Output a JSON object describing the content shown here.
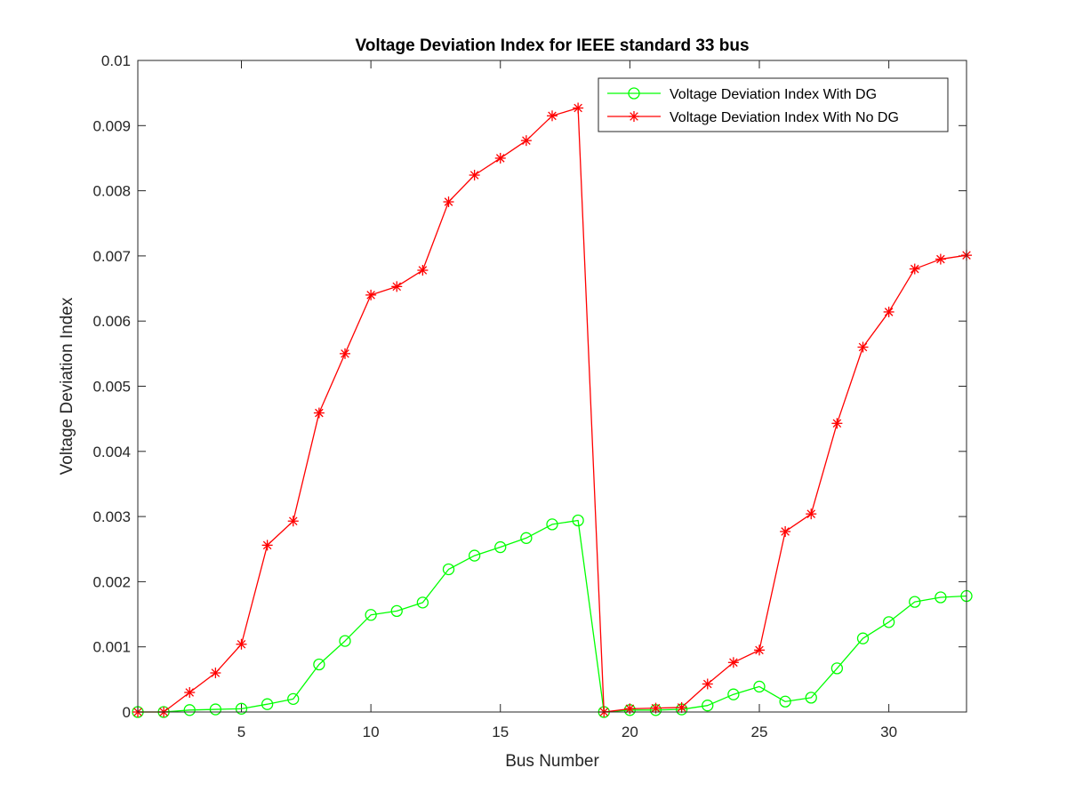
{
  "chart_data": {
    "type": "line",
    "title": "Voltage Deviation Index for IEEE standard 33 bus",
    "xlabel": "Bus Number",
    "ylabel": "Voltage Deviation Index",
    "xlim": [
      1,
      33
    ],
    "ylim": [
      0,
      0.01
    ],
    "x_ticks": [
      5,
      10,
      15,
      20,
      25,
      30
    ],
    "y_ticks": [
      0,
      0.001,
      0.002,
      0.003,
      0.004,
      0.005,
      0.006,
      0.007,
      0.008,
      0.009,
      0.01
    ],
    "y_tick_labels": [
      "0",
      "0.001",
      "0.002",
      "0.003",
      "0.004",
      "0.005",
      "0.006",
      "0.007",
      "0.008",
      "0.009",
      "0.01"
    ],
    "grid": false,
    "legend_position": "top-right",
    "x": [
      1,
      2,
      3,
      4,
      5,
      6,
      7,
      8,
      9,
      10,
      11,
      12,
      13,
      14,
      15,
      16,
      17,
      18,
      19,
      20,
      21,
      22,
      23,
      24,
      25,
      26,
      27,
      28,
      29,
      30,
      31,
      32,
      33
    ],
    "series": [
      {
        "name": "Voltage Deviation Index With DG",
        "color": "#00ff00",
        "marker": "circle",
        "values": [
          0,
          0,
          3e-05,
          4e-05,
          5e-05,
          0.00012,
          0.0002,
          0.00073,
          0.00109,
          0.00149,
          0.00155,
          0.00168,
          0.00219,
          0.0024,
          0.00253,
          0.00267,
          0.00288,
          0.00294,
          0,
          3e-05,
          3e-05,
          4e-05,
          0.0001,
          0.00027,
          0.00039,
          0.00016,
          0.00022,
          0.00067,
          0.00113,
          0.00138,
          0.00169,
          0.00176,
          0.00178
        ]
      },
      {
        "name": "Voltage Deviation Index With No DG",
        "color": "#ff0000",
        "marker": "asterisk",
        "values": [
          0,
          0,
          0.0003,
          0.0006,
          0.00104,
          0.00256,
          0.00293,
          0.00459,
          0.0055,
          0.0064,
          0.00653,
          0.00678,
          0.00783,
          0.00824,
          0.0085,
          0.00877,
          0.00915,
          0.00927,
          0,
          5e-05,
          6e-05,
          7e-05,
          0.00043,
          0.00076,
          0.00095,
          0.00277,
          0.00304,
          0.00443,
          0.0056,
          0.00614,
          0.0068,
          0.00695,
          0.00701
        ]
      }
    ]
  }
}
